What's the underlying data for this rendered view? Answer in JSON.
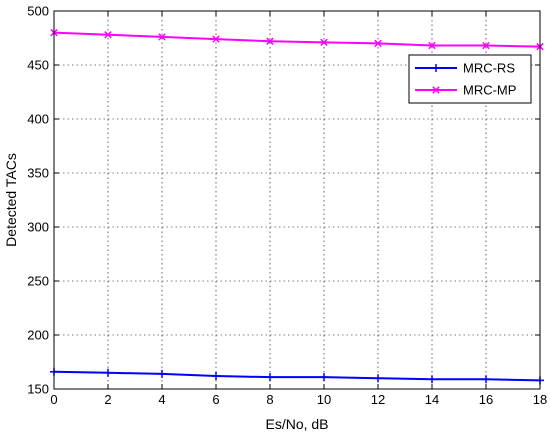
{
  "chart_data": {
    "type": "line",
    "title": "",
    "xlabel": "Es/No, dB",
    "ylabel": "Detected TACs",
    "x": [
      0,
      2,
      4,
      6,
      8,
      10,
      12,
      14,
      16,
      18
    ],
    "xlim": [
      0,
      18
    ],
    "ylim": [
      150,
      500
    ],
    "xticks": [
      0,
      2,
      4,
      6,
      8,
      10,
      12,
      14,
      16,
      18
    ],
    "yticks": [
      150,
      200,
      250,
      300,
      350,
      400,
      450,
      500
    ],
    "grid": true,
    "legend_position": "top-right",
    "series": [
      {
        "name": "MRC-RS",
        "color": "#0000ff",
        "marker": "plus",
        "values": [
          166,
          165,
          164,
          162,
          161,
          161,
          160,
          159,
          159,
          158
        ]
      },
      {
        "name": "MRC-MP",
        "color": "#ff00ff",
        "marker": "x",
        "values": [
          480,
          478,
          476,
          474,
          472,
          471,
          470,
          468,
          468,
          467
        ]
      }
    ]
  }
}
